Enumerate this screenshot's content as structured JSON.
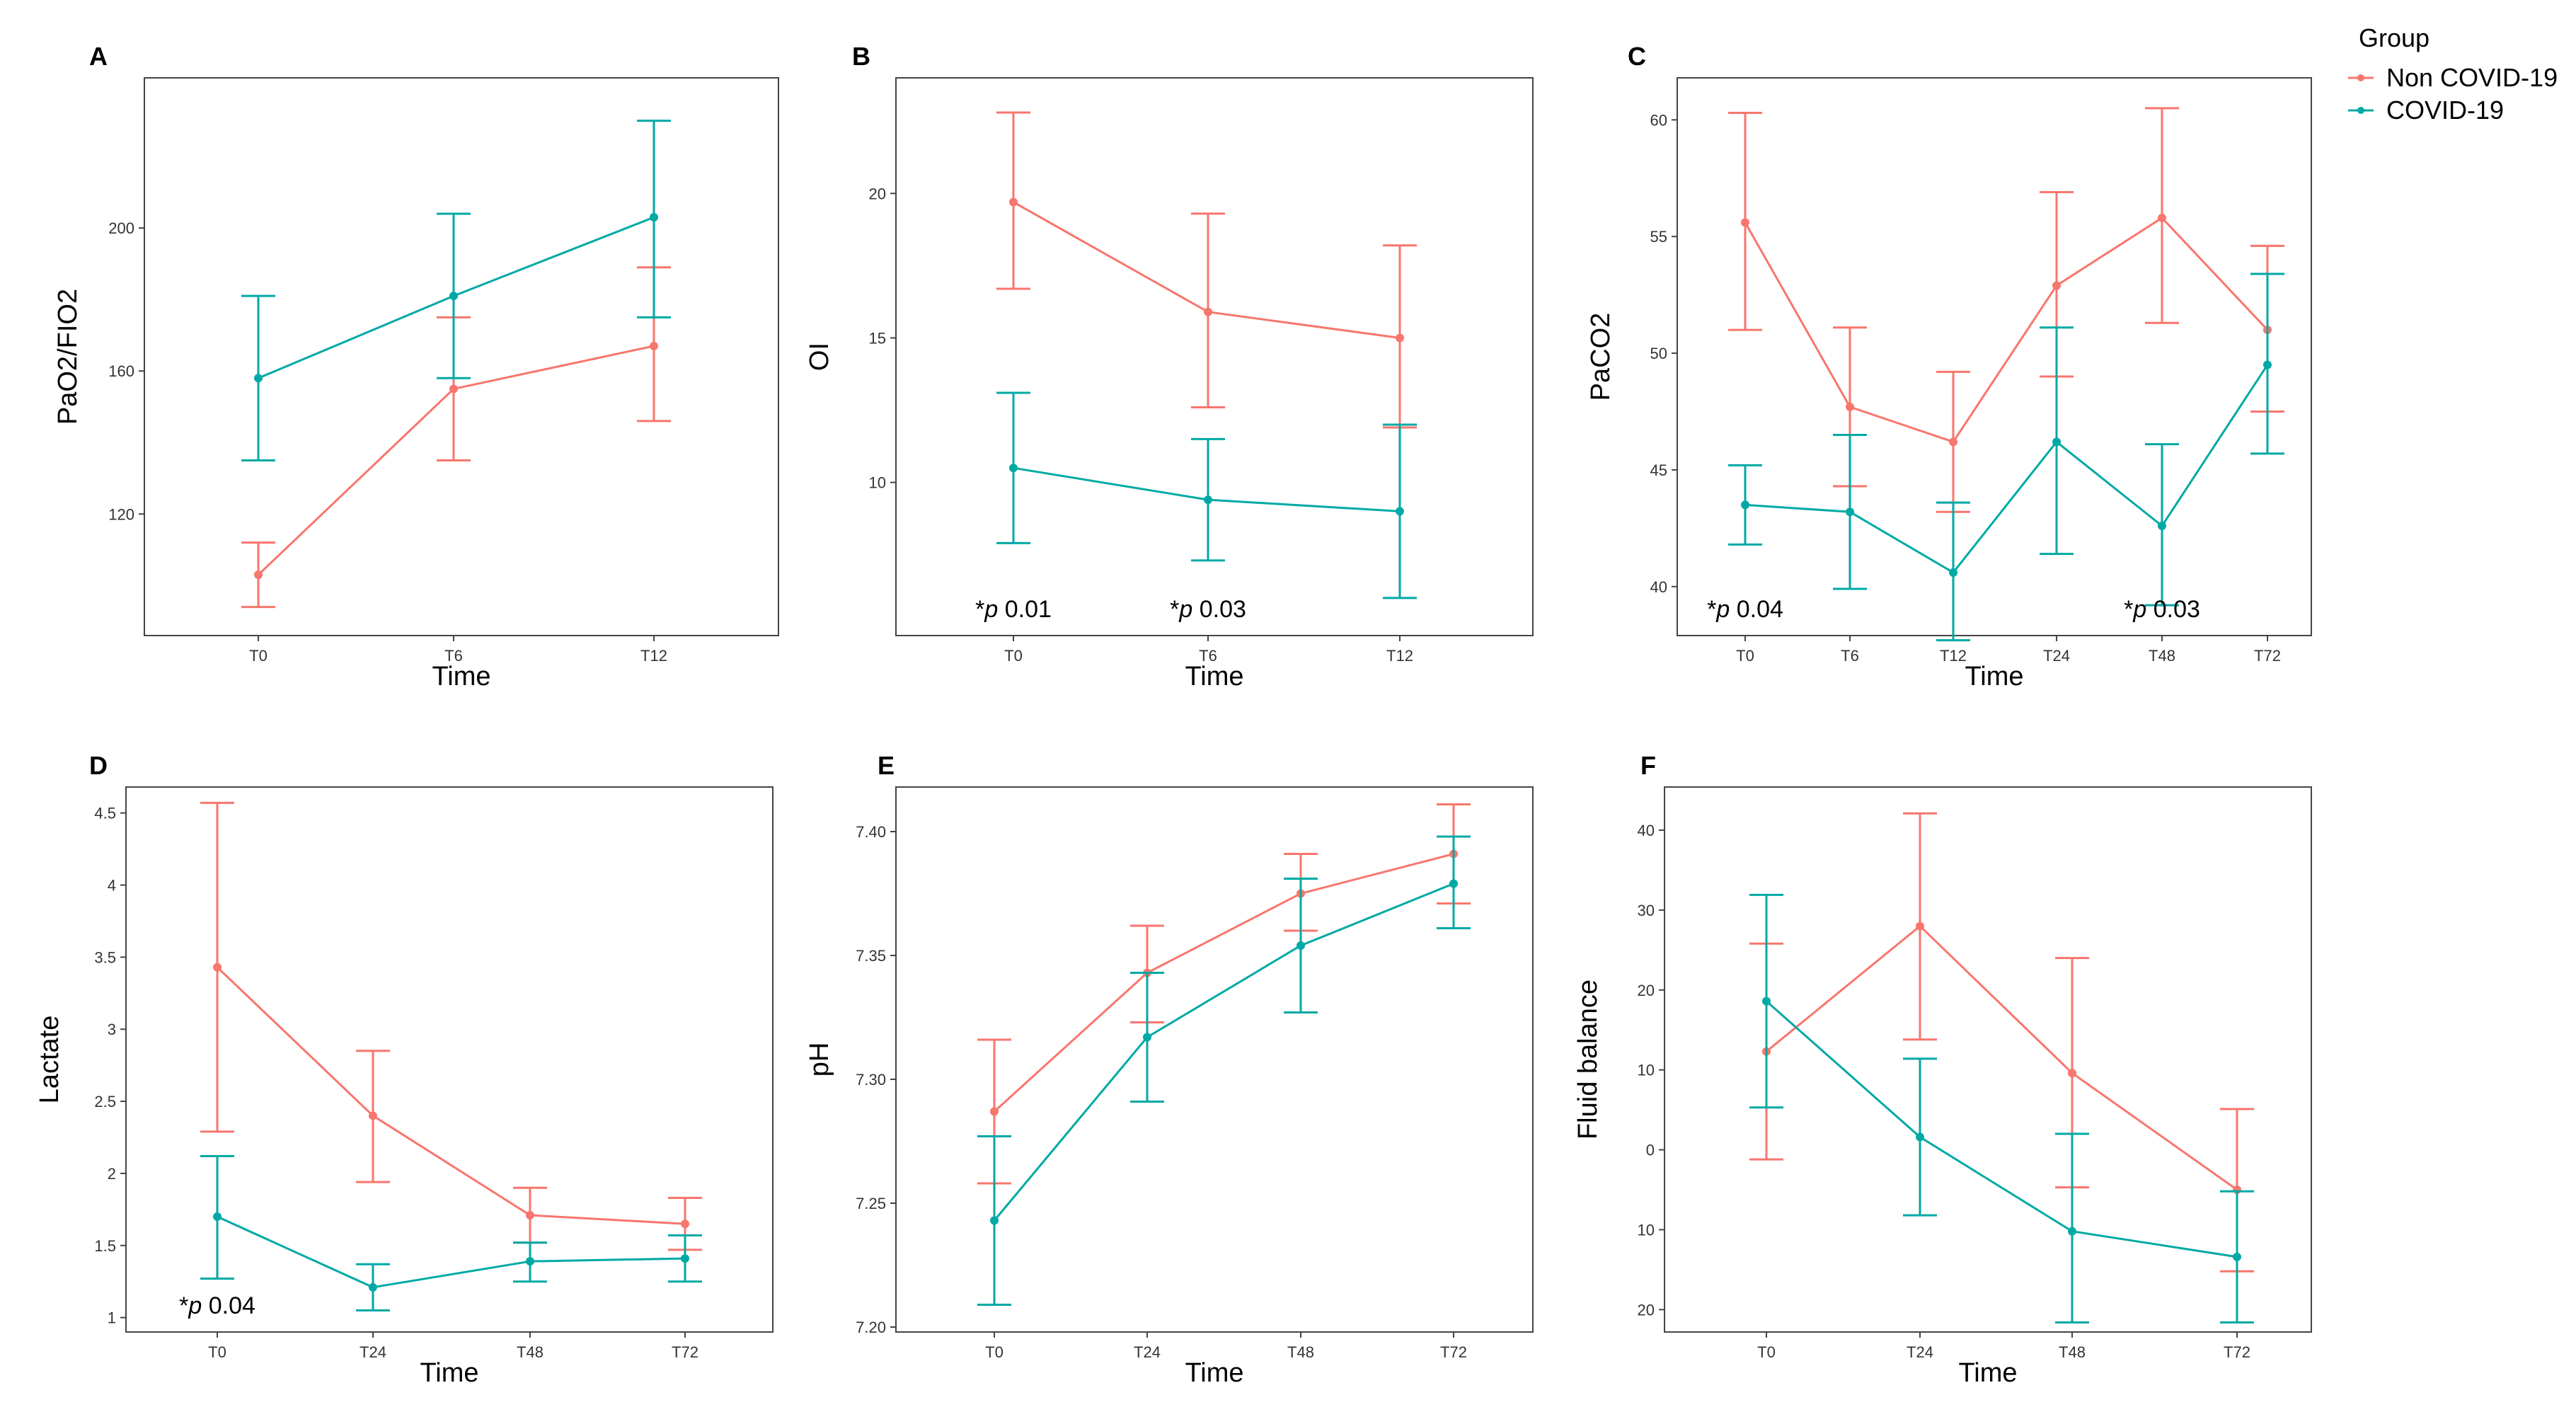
{
  "legend": {
    "title": "Group",
    "items": [
      {
        "label": "Non COVID-19",
        "color": "#F8766D"
      },
      {
        "label": "COVID-19",
        "color": "#00A9A5"
      }
    ]
  },
  "chart_data": [
    {
      "panel": "A",
      "type": "line",
      "xlabel": "Time",
      "ylabel": "PaO2/FIO2",
      "categories": [
        "T0",
        "T6",
        "T12"
      ],
      "ylim": [
        86,
        242
      ],
      "yticks": [
        120,
        160,
        200
      ],
      "series": [
        {
          "name": "Non COVID-19",
          "values": [
            103,
            155,
            167
          ],
          "lower": [
            94,
            135,
            146
          ],
          "upper": [
            112,
            175,
            189
          ]
        },
        {
          "name": "COVID-19",
          "values": [
            158,
            181,
            203
          ],
          "lower": [
            135,
            158,
            175
          ],
          "upper": [
            181,
            204,
            230
          ]
        }
      ],
      "annotations": []
    },
    {
      "panel": "B",
      "type": "line",
      "xlabel": "Time",
      "ylabel": "OI",
      "categories": [
        "T0",
        "T6",
        "T12"
      ],
      "ylim": [
        4.7,
        24.0
      ],
      "yticks": [
        10,
        15,
        20
      ],
      "series": [
        {
          "name": "Non COVID-19",
          "values": [
            19.7,
            15.9,
            15.0
          ],
          "lower": [
            16.7,
            12.6,
            11.9
          ],
          "upper": [
            22.8,
            19.3,
            18.2
          ]
        },
        {
          "name": "COVID-19",
          "values": [
            10.5,
            9.4,
            9.0
          ],
          "lower": [
            7.9,
            7.3,
            6.0
          ],
          "upper": [
            13.1,
            11.5,
            12.0
          ]
        }
      ],
      "annotations": [
        {
          "x": "T0",
          "text": "*p 0.01"
        },
        {
          "x": "T6",
          "text": "*p 0.03"
        }
      ]
    },
    {
      "panel": "C",
      "type": "line",
      "xlabel": "Time",
      "ylabel": "PaCO2",
      "categories": [
        "T0",
        "T6",
        "T12",
        "T24",
        "T48",
        "T72"
      ],
      "ylim": [
        37.9,
        61.8
      ],
      "yticks": [
        40,
        45,
        50,
        55,
        60
      ],
      "series": [
        {
          "name": "Non COVID-19",
          "values": [
            55.6,
            47.7,
            46.2,
            52.9,
            55.8,
            51.0
          ],
          "lower": [
            51.0,
            44.3,
            43.2,
            49.0,
            51.3,
            47.5
          ],
          "upper": [
            60.3,
            51.1,
            49.2,
            56.9,
            60.5,
            54.6
          ]
        },
        {
          "name": "COVID-19",
          "values": [
            43.5,
            43.2,
            40.6,
            46.2,
            42.6,
            49.5
          ],
          "lower": [
            41.8,
            39.9,
            37.7,
            41.4,
            39.2,
            45.7
          ],
          "upper": [
            45.2,
            46.5,
            43.6,
            51.1,
            46.1,
            53.4
          ]
        }
      ],
      "annotations": [
        {
          "x": "T0",
          "text": "*p 0.04"
        },
        {
          "x": "T48",
          "text": "*p 0.03"
        }
      ]
    },
    {
      "panel": "D",
      "type": "line",
      "xlabel": "Time",
      "ylabel": "Lactate",
      "categories": [
        "T0",
        "T24",
        "T48",
        "T72"
      ],
      "ylim": [
        0.9,
        4.68
      ],
      "yticks": [
        1.0,
        1.5,
        2.0,
        2.5,
        3.0,
        3.5,
        4.0,
        4.5
      ],
      "series": [
        {
          "name": "Non COVID-19",
          "values": [
            3.43,
            2.4,
            1.71,
            1.65
          ],
          "lower": [
            2.29,
            1.94,
            1.52,
            1.47
          ],
          "upper": [
            4.57,
            2.85,
            1.9,
            1.83
          ]
        },
        {
          "name": "COVID-19",
          "values": [
            1.7,
            1.21,
            1.39,
            1.41
          ],
          "lower": [
            1.27,
            1.05,
            1.25,
            1.25
          ],
          "upper": [
            2.12,
            1.37,
            1.52,
            1.57
          ]
        }
      ],
      "annotations": [
        {
          "x": "T0",
          "text": "*p 0.04"
        }
      ]
    },
    {
      "panel": "E",
      "type": "line",
      "xlabel": "Time",
      "ylabel": "pH",
      "categories": [
        "T0",
        "T24",
        "T48",
        "T72"
      ],
      "ylim": [
        7.198,
        7.418
      ],
      "yticks": [
        7.2,
        7.25,
        7.3,
        7.35,
        7.4
      ],
      "ytickLabels": [
        "7.20",
        "7.25",
        "7.30",
        "7.35",
        "7.40"
      ],
      "series": [
        {
          "name": "Non COVID-19",
          "values": [
            7.287,
            7.343,
            7.375,
            7.391
          ],
          "lower": [
            7.258,
            7.323,
            7.36,
            7.371
          ],
          "upper": [
            7.316,
            7.362,
            7.391,
            7.411
          ]
        },
        {
          "name": "COVID-19",
          "values": [
            7.243,
            7.317,
            7.354,
            7.379
          ],
          "lower": [
            7.209,
            7.291,
            7.327,
            7.361
          ],
          "upper": [
            7.277,
            7.343,
            7.381,
            7.398
          ]
        }
      ],
      "annotations": []
    },
    {
      "panel": "F",
      "type": "line",
      "xlabel": "Time",
      "ylabel": "Fluid balance",
      "categories": [
        "T0",
        "T24",
        "T48",
        "T72"
      ],
      "ylim": [
        -22.8,
        45.4
      ],
      "yticks": [
        -20,
        -10,
        0,
        10,
        20,
        30,
        40
      ],
      "ytickLabels": [
        "20",
        "10",
        "0",
        "10",
        "20",
        "30",
        "40"
      ],
      "series": [
        {
          "name": "Non COVID-19",
          "values": [
            12.3,
            28.0,
            9.6,
            -5.0
          ],
          "lower": [
            -1.2,
            13.8,
            -4.7,
            -15.2
          ],
          "upper": [
            25.8,
            42.1,
            24.0,
            5.1
          ]
        },
        {
          "name": "COVID-19",
          "values": [
            18.6,
            1.6,
            -10.2,
            -13.4
          ],
          "lower": [
            5.3,
            -8.2,
            -21.6,
            -21.6
          ],
          "upper": [
            31.9,
            11.4,
            2.0,
            -5.2
          ]
        }
      ],
      "annotations": []
    }
  ]
}
